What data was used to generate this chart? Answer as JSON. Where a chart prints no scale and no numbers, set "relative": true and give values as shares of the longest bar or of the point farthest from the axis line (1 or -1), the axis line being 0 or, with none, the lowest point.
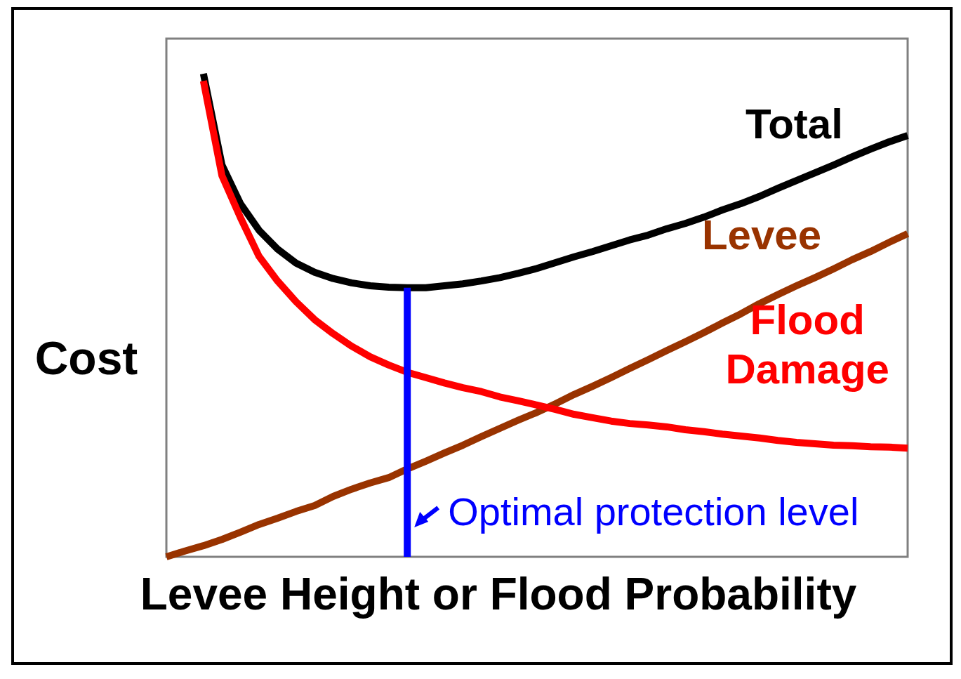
{
  "chart_data": {
    "type": "line",
    "relative": true,
    "xlabel": "Levee Height or Flood Probability",
    "ylabel": "Cost",
    "categories": [
      null,
      null,
      null,
      null,
      null,
      null,
      null,
      null,
      null,
      null,
      null,
      null,
      null,
      null,
      null,
      null,
      null,
      null,
      null,
      null,
      null,
      null,
      null,
      null,
      null,
      null,
      null,
      null,
      null,
      null,
      null,
      null,
      null,
      null,
      null,
      null,
      null,
      null,
      null,
      null,
      null
    ],
    "series": [
      {
        "name": "Total",
        "color": "#000000",
        "values": [
          null,
          null,
          1.0,
          0.811,
          0.731,
          0.676,
          0.637,
          0.608,
          0.589,
          0.576,
          0.567,
          0.561,
          0.558,
          0.557,
          0.557,
          0.561,
          0.565,
          0.571,
          0.578,
          0.587,
          0.597,
          0.609,
          0.621,
          0.632,
          0.644,
          0.656,
          0.666,
          0.679,
          0.69,
          0.703,
          0.718,
          0.731,
          0.746,
          0.763,
          0.779,
          0.795,
          0.811,
          0.828,
          0.844,
          0.859,
          0.872
        ]
      },
      {
        "name": "Levee",
        "color": "#993300",
        "values": [
          0,
          0.012,
          0.023,
          0.036,
          0.051,
          0.067,
          0.08,
          0.094,
          0.106,
          0.125,
          0.14,
          0.153,
          0.164,
          0.182,
          0.198,
          0.215,
          0.231,
          0.249,
          0.266,
          0.283,
          0.299,
          0.317,
          0.336,
          0.353,
          0.371,
          0.39,
          0.408,
          0.427,
          0.445,
          0.464,
          0.484,
          0.503,
          0.524,
          0.543,
          0.561,
          0.578,
          0.596,
          0.615,
          0.632,
          0.651,
          0.669
        ]
      },
      {
        "name": "Flood Damage",
        "color": "#ff0000",
        "values": [
          null,
          null,
          0.985,
          0.789,
          0.702,
          0.622,
          0.571,
          0.528,
          0.491,
          0.462,
          0.436,
          0.414,
          0.397,
          0.382,
          0.371,
          0.36,
          0.35,
          0.342,
          0.331,
          0.323,
          0.314,
          0.305,
          0.295,
          0.288,
          0.281,
          0.276,
          0.273,
          0.269,
          0.263,
          0.259,
          0.254,
          0.25,
          0.246,
          0.241,
          0.237,
          0.234,
          0.231,
          0.23,
          0.228,
          0.227,
          0.225
        ]
      }
    ],
    "annotations": [
      "Optimal protection level"
    ],
    "legend": false,
    "line_style": "solid"
  }
}
